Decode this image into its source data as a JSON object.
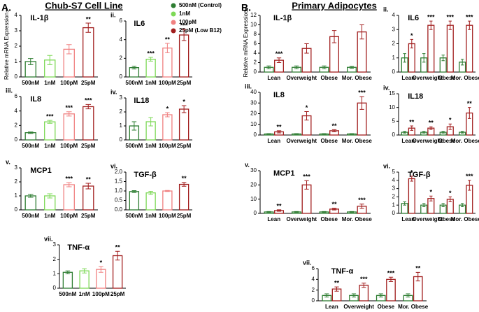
{
  "figure": {
    "panel_a": "A.",
    "title_a": "Chub-S7 Cell Line",
    "panel_b": "B.",
    "title_b": "Primary Adipocytes",
    "legend": [
      {
        "name": "500nM (Control)",
        "color": "#2e7d32"
      },
      {
        "name": "1nM",
        "color": "#7ed957"
      },
      {
        "name": "100pM",
        "color": "#f08080"
      },
      {
        "name": "25pM (Low B12)",
        "color": "#a11d1d"
      }
    ]
  },
  "chart_data": [
    {
      "type": "bar",
      "panel": "i.",
      "title": "IL-1β",
      "ylabel": "Relative mRNA Expression",
      "categories": [
        "500nM",
        "1nM",
        "100pM",
        "25pM"
      ],
      "colors": [
        "#2e7d32",
        "#7ed957",
        "#f08080",
        "#a11d1d"
      ],
      "values": [
        1.0,
        1.1,
        1.8,
        3.2
      ],
      "errors": [
        0.2,
        0.3,
        0.3,
        0.3
      ],
      "significance": [
        null,
        null,
        null,
        "**"
      ],
      "ylim": [
        0,
        4
      ],
      "yticks": [
        0,
        1,
        2,
        3,
        4
      ]
    },
    {
      "type": "bar",
      "panel": "ii.",
      "title": "IL6",
      "categories": [
        "500nM",
        "1nM",
        "100pM",
        "25pM"
      ],
      "colors": [
        "#2e7d32",
        "#7ed957",
        "#f08080",
        "#a11d1d"
      ],
      "values": [
        1.0,
        1.9,
        3.1,
        4.5
      ],
      "errors": [
        0.15,
        0.2,
        0.5,
        0.6
      ],
      "significance": [
        null,
        "***",
        "**",
        "***"
      ],
      "ylim": [
        0,
        6
      ],
      "yticks": [
        0,
        2,
        4,
        6
      ]
    },
    {
      "type": "bar",
      "panel": "iii.",
      "title": "IL8",
      "categories": [
        "500nM",
        "1nM",
        "100pM",
        "25pM"
      ],
      "colors": [
        "#2e7d32",
        "#7ed957",
        "#f08080",
        "#a11d1d"
      ],
      "values": [
        1.0,
        2.5,
        3.6,
        4.6
      ],
      "errors": [
        0.1,
        0.2,
        0.3,
        0.3
      ],
      "significance": [
        null,
        "***",
        "***",
        "***"
      ],
      "ylim": [
        0,
        6
      ],
      "yticks": [
        0,
        2,
        4,
        6
      ]
    },
    {
      "type": "bar",
      "panel": "iv.",
      "title": "IL18",
      "categories": [
        "500nM",
        "1nM",
        "100pM",
        "25pM"
      ],
      "colors": [
        "#2e7d32",
        "#7ed957",
        "#f08080",
        "#a11d1d"
      ],
      "values": [
        1.0,
        1.3,
        1.8,
        2.2
      ],
      "errors": [
        0.3,
        0.3,
        0.15,
        0.25
      ],
      "significance": [
        null,
        null,
        "*",
        "*"
      ],
      "ylim": [
        0,
        3
      ],
      "yticks": [
        0,
        1,
        2,
        3
      ]
    },
    {
      "type": "bar",
      "panel": "v.",
      "title": "MCP1",
      "categories": [
        "500nM",
        "1nM",
        "100pM",
        "25pM"
      ],
      "colors": [
        "#2e7d32",
        "#7ed957",
        "#f08080",
        "#a11d1d"
      ],
      "values": [
        1.0,
        1.0,
        1.8,
        1.7
      ],
      "errors": [
        0.1,
        0.15,
        0.15,
        0.2
      ],
      "significance": [
        null,
        null,
        "***",
        "**"
      ],
      "ylim": [
        0,
        3
      ],
      "yticks": [
        0,
        1,
        2,
        3
      ]
    },
    {
      "type": "bar",
      "panel": "vi.",
      "title": "TGF-β",
      "categories": [
        "500nM",
        "1nM",
        "100pM",
        "25pM"
      ],
      "colors": [
        "#2e7d32",
        "#7ed957",
        "#f08080",
        "#a11d1d"
      ],
      "values": [
        0.97,
        0.9,
        1.0,
        1.35
      ],
      "errors": [
        0.05,
        0.08,
        0.03,
        0.1
      ],
      "significance": [
        null,
        null,
        null,
        "**"
      ],
      "ylim": [
        0,
        2
      ],
      "yticks": [
        {
          "value": 0,
          "label": "0.0"
        },
        0.5,
        {
          "value": 1,
          "label": "1.0"
        },
        1.5,
        {
          "value": 2,
          "label": "2.0"
        }
      ]
    },
    {
      "type": "bar",
      "panel": "vii.",
      "title": "TNF-α",
      "categories": [
        "500nM",
        "1nM",
        "100pM",
        "25pM"
      ],
      "colors": [
        "#2e7d32",
        "#7ed957",
        "#f08080",
        "#a11d1d"
      ],
      "values": [
        1.1,
        1.2,
        1.3,
        2.25
      ],
      "errors": [
        0.1,
        0.15,
        0.2,
        0.3
      ],
      "significance": [
        null,
        null,
        "*",
        "**"
      ],
      "ylim": [
        0,
        3
      ],
      "yticks": [
        0,
        1,
        2,
        3
      ]
    },
    {
      "type": "grouped_bar",
      "panel": "i.",
      "title": "IL-1β",
      "ylabel": "Relative mRNA Expression",
      "categories": [
        "Lean",
        "Overweight",
        "Obese",
        "Mor. Obese"
      ],
      "series": [
        {
          "color": "#2e7d32",
          "values": [
            1.0,
            1.0,
            1.0,
            1.0
          ],
          "errors": [
            0.3,
            0.3,
            0.3,
            0.2
          ]
        },
        {
          "color": "#a11d1d",
          "values": [
            2.5,
            5.0,
            7.5,
            8.5
          ],
          "errors": [
            0.5,
            1.0,
            1.3,
            1.5
          ],
          "significance": [
            "***",
            null,
            null,
            null
          ]
        }
      ],
      "ylim": [
        0,
        12
      ],
      "yticks": [
        0,
        2,
        4,
        6,
        8,
        10,
        12
      ]
    },
    {
      "type": "grouped_bar",
      "panel": "ii.",
      "title": "IL6",
      "categories": [
        "Lean",
        "Overweight",
        "Obese",
        "Mor. Obese"
      ],
      "series": [
        {
          "color": "#2e7d32",
          "values": [
            1.0,
            1.0,
            1.0,
            0.7
          ],
          "errors": [
            0.3,
            0.3,
            0.2,
            0.2
          ]
        },
        {
          "color": "#a11d1d",
          "values": [
            2.0,
            3.3,
            3.3,
            3.3
          ],
          "errors": [
            0.3,
            0.3,
            0.3,
            0.3
          ],
          "significance": [
            "*",
            "***",
            "***",
            "***"
          ]
        }
      ],
      "ylim": [
        0,
        4
      ],
      "yticks": [
        0,
        1,
        2,
        3,
        4
      ]
    },
    {
      "type": "grouped_bar",
      "panel": "iii.",
      "title": "IL8",
      "categories": [
        "Lean",
        "Overweight",
        "Obese",
        "Mor. Obese"
      ],
      "series": [
        {
          "color": "#2e7d32",
          "values": [
            1.0,
            1.0,
            1.0,
            1.0
          ],
          "errors": [
            0.3,
            0.3,
            0.3,
            0.3
          ]
        },
        {
          "color": "#a11d1d",
          "values": [
            3.0,
            18.0,
            4.0,
            30.0
          ],
          "errors": [
            1.0,
            4.0,
            1.0,
            6.0
          ],
          "significance": [
            "**",
            "*",
            "**",
            "***"
          ]
        }
      ],
      "ylim": [
        0,
        40
      ],
      "yticks": [
        0,
        10,
        20,
        30,
        40
      ]
    },
    {
      "type": "grouped_bar",
      "panel": "iv.",
      "title": "IL18",
      "categories": [
        "Lean",
        "Overweight",
        "Obese",
        "Mor. Obese"
      ],
      "series": [
        {
          "color": "#2e7d32",
          "values": [
            1.0,
            1.0,
            1.0,
            1.0
          ],
          "errors": [
            0.3,
            0.3,
            0.3,
            0.3
          ]
        },
        {
          "color": "#a11d1d",
          "values": [
            2.5,
            2.5,
            3.0,
            8.0
          ],
          "errors": [
            0.8,
            0.5,
            1.0,
            2.0
          ],
          "significance": [
            "**",
            "**",
            "*",
            "**"
          ]
        }
      ],
      "ylim": [
        0,
        15
      ],
      "yticks": [
        0,
        5,
        10,
        15
      ]
    },
    {
      "type": "grouped_bar",
      "panel": "v.",
      "title": "MCP1",
      "categories": [
        "Lean",
        "Overweight",
        "Obese",
        "Mor. Obese"
      ],
      "series": [
        {
          "color": "#2e7d32",
          "values": [
            1.0,
            1.0,
            1.0,
            1.0
          ],
          "errors": [
            0.3,
            0.3,
            0.3,
            0.3
          ]
        },
        {
          "color": "#a11d1d",
          "values": [
            2.0,
            20.0,
            3.0,
            5.0
          ],
          "errors": [
            0.5,
            3.0,
            0.6,
            1.5
          ],
          "significance": [
            "**",
            "***",
            "**",
            "***"
          ]
        }
      ],
      "ylim": [
        0,
        30
      ],
      "yticks": [
        0,
        10,
        20,
        30
      ]
    },
    {
      "type": "grouped_bar",
      "panel": "vi.",
      "title": "TGF-β",
      "categories": [
        "Lean",
        "Overweight",
        "Obese",
        "Mor. Obese"
      ],
      "series": [
        {
          "color": "#2e7d32",
          "values": [
            1.2,
            1.0,
            1.0,
            1.0
          ],
          "errors": [
            0.2,
            0.2,
            0.2,
            0.2
          ]
        },
        {
          "color": "#a11d1d",
          "values": [
            4.2,
            1.8,
            1.7,
            3.4
          ],
          "errors": [
            0.3,
            0.3,
            0.3,
            0.6
          ],
          "significance": [
            "*",
            "*",
            "*",
            "***"
          ]
        }
      ],
      "ylim": [
        0,
        5
      ],
      "yticks": [
        0,
        1,
        2,
        3,
        4,
        5
      ]
    },
    {
      "type": "grouped_bar",
      "panel": "vii.",
      "title": "TNF-α",
      "categories": [
        "Lean",
        "Overweight",
        "Obese",
        "Mor. Obese"
      ],
      "series": [
        {
          "color": "#2e7d32",
          "values": [
            1.0,
            1.0,
            1.0,
            1.0
          ],
          "errors": [
            0.3,
            0.3,
            0.3,
            0.3
          ]
        },
        {
          "color": "#a11d1d",
          "values": [
            2.2,
            2.9,
            4.0,
            4.5
          ],
          "errors": [
            0.4,
            0.4,
            0.4,
            0.8
          ],
          "significance": [
            "**",
            "***",
            "***",
            "**"
          ]
        }
      ],
      "ylim": [
        0,
        6
      ],
      "yticks": [
        0,
        2,
        4,
        6
      ]
    }
  ]
}
